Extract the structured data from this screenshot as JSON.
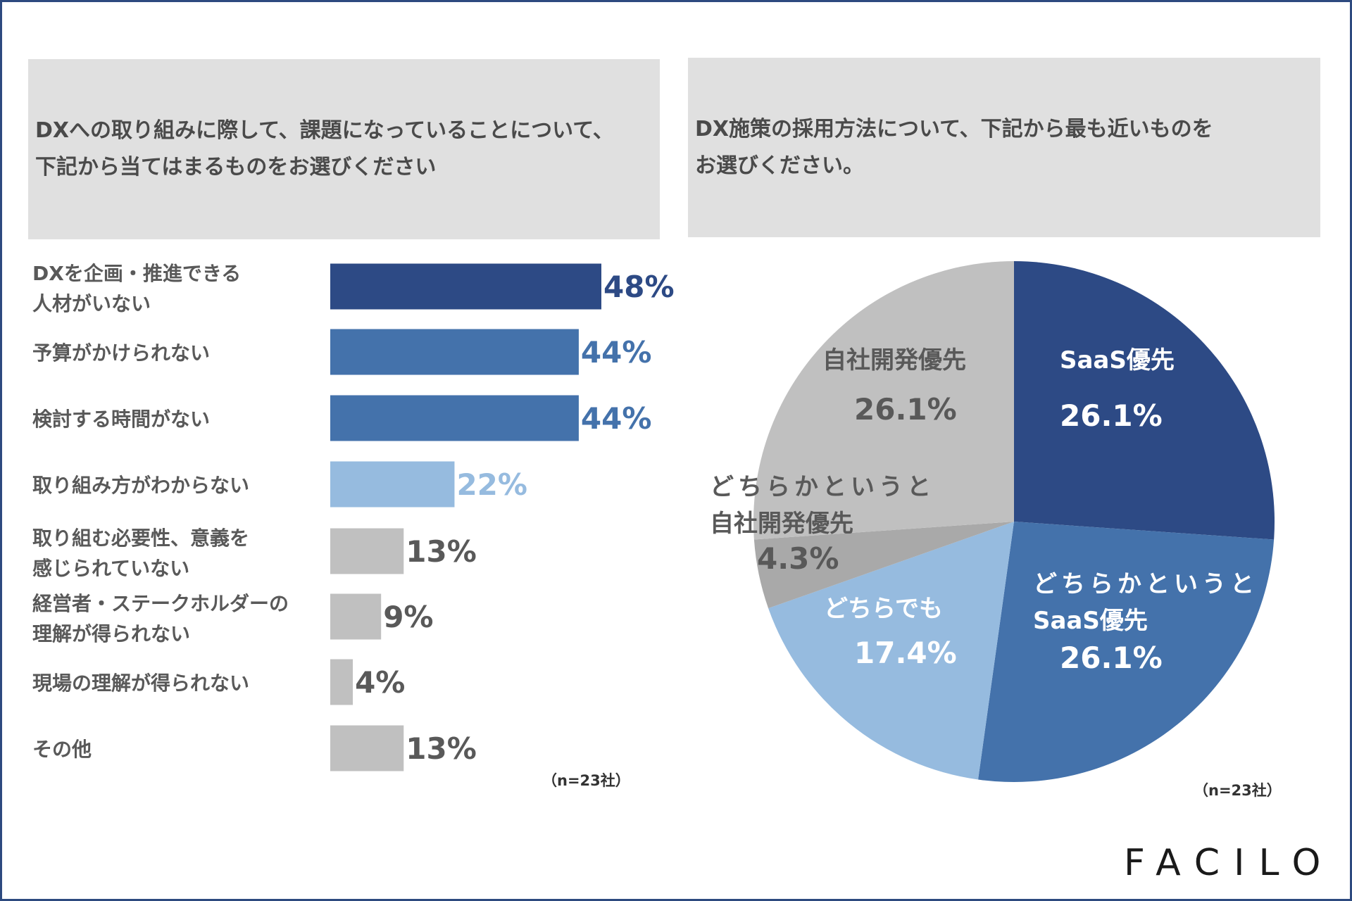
{
  "colors": {
    "navy": "#2d4a85",
    "blue": "#4472ab",
    "light_blue": "#96bbdf",
    "gray": "#c0c0c0",
    "dark_gray": "#a9a9a9",
    "label_gray": "#595959"
  },
  "left_question": {
    "line1": "DXへの取り組みに際して、課題になっていることについて、",
    "line2": "下記から当てはまるものをお選びください"
  },
  "right_question": {
    "line1": "DX施策の採用方法について、下記から最も近いものを",
    "line2": "お選びください。"
  },
  "chart_data": [
    {
      "type": "bar",
      "orientation": "horizontal",
      "title": "DXへの取り組みに際して、課題になっていることについて、下記から当てはまるものをお選びください",
      "categories": [
        [
          "DXを企画・推進できる",
          "人材がいない"
        ],
        [
          "予算がかけられない"
        ],
        [
          "検討する時間がない"
        ],
        [
          "取り組み方がわからない"
        ],
        [
          "取り組む必要性、意義を",
          "感じられていない"
        ],
        [
          "経営者・ステークホルダーの",
          "理解が得られない"
        ],
        [
          "現場の理解が得られない"
        ],
        [
          "その他"
        ]
      ],
      "values": [
        48,
        44,
        44,
        22,
        13,
        9,
        4,
        13
      ],
      "value_labels": [
        "48%",
        "44%",
        "44%",
        "22%",
        "13%",
        "9%",
        "4%",
        "13%"
      ],
      "bar_colors": [
        "#2d4a85",
        "#4472ab",
        "#4472ab",
        "#96bbdf",
        "#c0c0c0",
        "#c0c0c0",
        "#c0c0c0",
        "#c0c0c0"
      ],
      "label_colors": [
        "#2d4a85",
        "#4472ab",
        "#4472ab",
        "#96bbdf",
        "#595959",
        "#595959",
        "#595959",
        "#595959"
      ],
      "xlim": [
        0,
        48
      ],
      "note": "（n=23社）"
    },
    {
      "type": "pie",
      "title": "DX施策の採用方法について、下記から最も近いものをお選びください。",
      "slices": [
        {
          "label": [
            "SaaS優先"
          ],
          "value": 26.1,
          "value_label": "26.1%",
          "color": "#2d4a85",
          "text_color": "#ffffff"
        },
        {
          "label": [
            "どちらかというと",
            "SaaS優先"
          ],
          "value": 26.1,
          "value_label": "26.1%",
          "color": "#4472ab",
          "text_color": "#ffffff"
        },
        {
          "label": [
            "どちらでも"
          ],
          "value": 17.4,
          "value_label": "17.4%",
          "color": "#96bbdf",
          "text_color": "#ffffff"
        },
        {
          "label": [
            "どちらかというと",
            "自社開発優先"
          ],
          "value": 4.3,
          "value_label": "4.3%",
          "color": "#a9a9a9",
          "text_color": "#595959"
        },
        {
          "label": [
            "自社開発優先"
          ],
          "value": 26.1,
          "value_label": "26.1%",
          "color": "#c0c0c0",
          "text_color": "#595959"
        }
      ],
      "start": "12 o'clock, clockwise",
      "note": "（n=23社）"
    }
  ],
  "logo": "FACILO"
}
